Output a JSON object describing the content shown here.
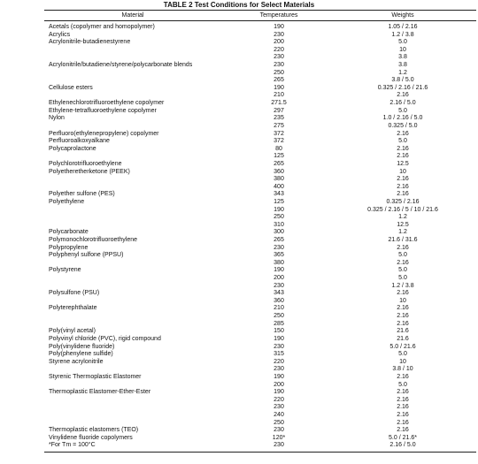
{
  "title": "TABLE 2  Test Conditions for Select Materials",
  "table": {
    "header": [
      "Material",
      "Temperatures",
      "Weights"
    ],
    "rows": [
      [
        "Acetals (copolymer and homopolymer)",
        "190",
        "1.05 / 2.16"
      ],
      [
        "Acrylics",
        "230",
        "1.2 / 3.8"
      ],
      [
        "Acrylonitrile-butadienestyrene",
        "200",
        "5.0"
      ],
      [
        null,
        "220",
        "10"
      ],
      [
        null,
        "230",
        "3.8"
      ],
      [
        "Acrylonitrile/butadiene/styrene/polycarbonate blends",
        "230",
        "3.8"
      ],
      [
        null,
        "250",
        "1.2"
      ],
      [
        null,
        "265",
        "3.8 / 5.0"
      ],
      [
        "Cellulose esters",
        "190",
        "0.325 / 2.16 / 21.6"
      ],
      [
        null,
        "210",
        "2.16"
      ],
      [
        "Ethylenechlorotrifluoroethylene copolymer",
        "271.5",
        "2.16 / 5.0"
      ],
      [
        "Ethylene-tetrafluoroethylene copolymer",
        "297",
        "5.0"
      ],
      [
        "Nylon",
        "235",
        "1.0 / 2.16 / 5.0"
      ],
      [
        null,
        "275",
        "0.325 / 5.0"
      ],
      [
        "Perfluoro(ethylenepropylene) copolymer",
        "372",
        "2.16"
      ],
      [
        "Perfluoroalkoxyalkane",
        "372",
        "5.0"
      ],
      [
        "Polycaprolactone",
        "80",
        "2.16"
      ],
      [
        null,
        "125",
        "2.16"
      ],
      [
        "Polychlorotrifluoroethylene",
        "265",
        "12.5"
      ],
      [
        "Polyetheretherketone (PEEK)",
        "360",
        "10"
      ],
      [
        null,
        "380",
        "2.16"
      ],
      [
        null,
        "400",
        "2.16"
      ],
      [
        "Polyether sulfone (PES)",
        "343",
        "2.16"
      ],
      [
        "Polyethylene",
        "125",
        "0.325 / 2.16"
      ],
      [
        null,
        "190",
        "0.325 / 2.16 / 5 / 10 / 21.6"
      ],
      [
        null,
        "250",
        "1.2"
      ],
      [
        null,
        "310",
        "12.5"
      ],
      [
        "Polycarbonate",
        "300",
        "1.2"
      ],
      [
        "Polymonochlorotrifluoroethylene",
        "265",
        "21.6 / 31.6"
      ],
      [
        "Polypropylene",
        "230",
        "2.16"
      ],
      [
        "Polyphenyl sulfone (PPSU)",
        "365",
        "5.0"
      ],
      [
        null,
        "380",
        "2.16"
      ],
      [
        "Polystyrene",
        "190",
        "5.0"
      ],
      [
        null,
        "200",
        "5.0"
      ],
      [
        null,
        "230",
        "1.2 / 3.8"
      ],
      [
        "Polysulfone (PSU)",
        "343",
        "2.16"
      ],
      [
        null,
        "360",
        "10"
      ],
      [
        "Polyterephthalate",
        "210",
        "2.16"
      ],
      [
        null,
        "250",
        "2.16"
      ],
      [
        null,
        "285",
        "2.16"
      ],
      [
        "Poly(vinyl acetal)",
        "150",
        "21.6"
      ],
      [
        "Polyvinyl chloride (PVC), rigid compound",
        "190",
        "21.6"
      ],
      [
        "Poly(vinylidene fluoride)",
        "230",
        "5.0 / 21.6"
      ],
      [
        "Poly(phenylene sulfide)",
        "315",
        "5.0"
      ],
      [
        "Styrene acrylonitrile",
        "220",
        "10"
      ],
      [
        null,
        "230",
        "3.8 / 10"
      ],
      [
        "Styrenic Thermoplastic Elastomer",
        "190",
        "2.16"
      ],
      [
        null,
        "200",
        "5.0"
      ],
      [
        "Thermoplastic Elastomer-Ether-Ester",
        "190",
        "2.16"
      ],
      [
        null,
        "220",
        "2.16"
      ],
      [
        null,
        "230",
        "2.16"
      ],
      [
        null,
        "240",
        "2.16"
      ],
      [
        null,
        "250",
        "2.16"
      ],
      [
        "Thermoplastic elastomers (TEO)",
        "230",
        "2.16"
      ],
      [
        "Vinylidene fluoride copolymers",
        "120*",
        "5.0 / 21.6*"
      ],
      [
        "*For Tm = 100°C",
        "230",
        "2.16 / 5.0"
      ]
    ]
  }
}
